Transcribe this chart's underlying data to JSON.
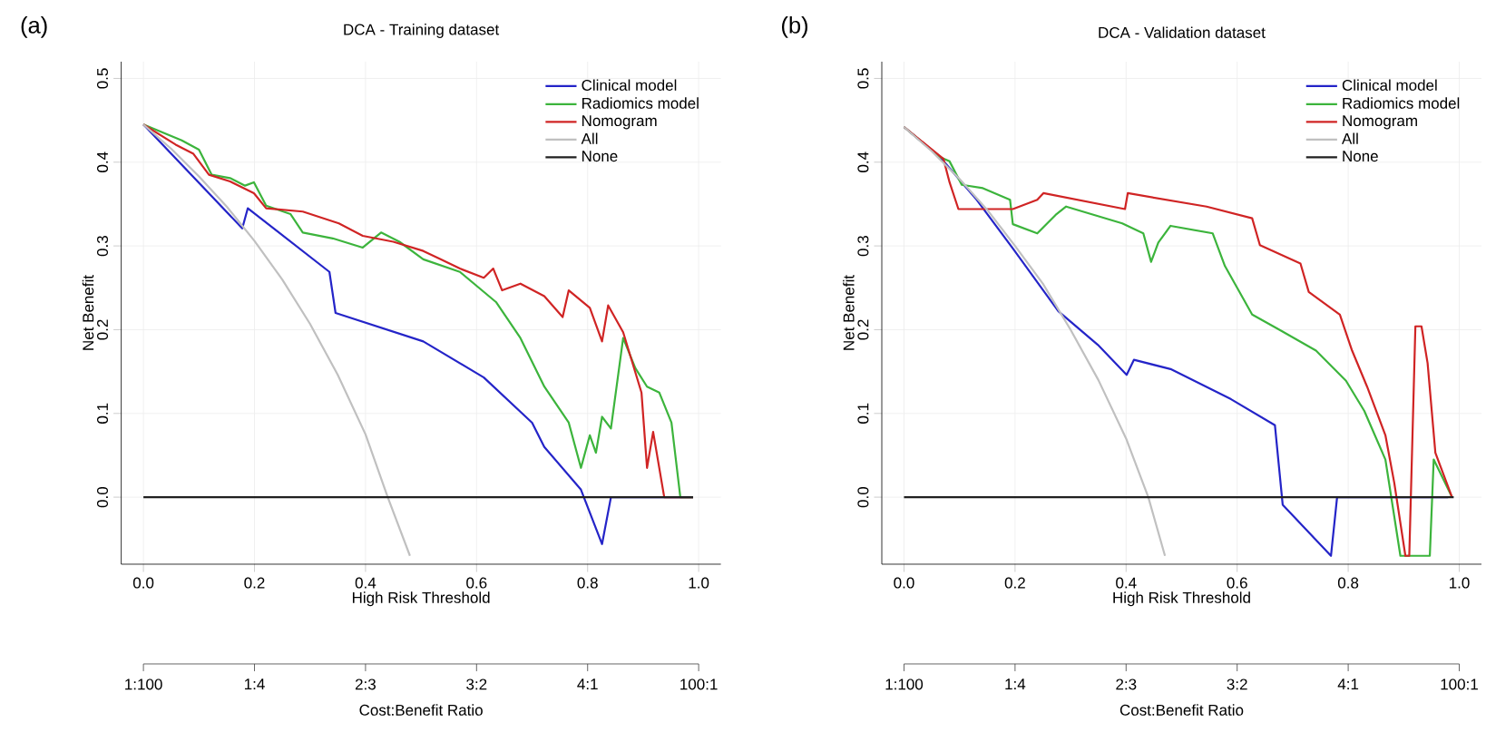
{
  "chart_data": [
    {
      "type": "line",
      "title": "DCA - Training dataset",
      "xlabel": "High Risk Threshold",
      "ylabel": "Net Benefit",
      "x2label": "Cost:Benefit Ratio",
      "annotations": [
        "(a)",
        "1:100",
        "1:4",
        "2:3",
        "3:2",
        "4:1",
        "100:1"
      ],
      "grid": true,
      "legend": "top right",
      "xlim": [
        -0.04,
        1.04
      ],
      "ylim": [
        -0.08,
        0.52
      ],
      "xticks": [
        {
          "value": 0,
          "label": "0.0"
        },
        {
          "value": 0.2,
          "label": "0.2"
        },
        {
          "value": 0.4,
          "label": "0.4"
        },
        {
          "value": 0.6,
          "label": "0.6"
        },
        {
          "value": 0.8,
          "label": "0.8"
        },
        {
          "value": 1,
          "label": "1.0"
        }
      ],
      "yticks": [
        {
          "value": 0,
          "label": "0.0"
        },
        {
          "value": 0.1,
          "label": "0.1"
        },
        {
          "value": 0.2,
          "label": "0.2"
        },
        {
          "value": 0.3,
          "label": "0.3"
        },
        {
          "value": 0.4,
          "label": "0.4"
        },
        {
          "value": 0.5,
          "label": "0.5"
        }
      ],
      "series": [
        {
          "name": "Clinical model",
          "color": "#2424c8",
          "x": [
            0,
            0.178,
            0.188,
            0.335,
            0.346,
            0.504,
            0.613,
            0.7,
            0.722,
            0.788,
            0.826,
            0.842,
            0.99
          ],
          "values": [
            0.445,
            0.321,
            0.345,
            0.269,
            0.22,
            0.186,
            0.143,
            0.089,
            0.06,
            0.009,
            -0.056,
            0,
            0
          ]
        },
        {
          "name": "Radiomics model",
          "color": "#3cb43c",
          "x": [
            0,
            0.069,
            0.1,
            0.123,
            0.156,
            0.183,
            0.199,
            0.221,
            0.265,
            0.287,
            0.341,
            0.395,
            0.428,
            0.461,
            0.504,
            0.57,
            0.635,
            0.679,
            0.722,
            0.766,
            0.788,
            0.804,
            0.815,
            0.826,
            0.842,
            0.864,
            0.886,
            0.907,
            0.929,
            0.951,
            0.967,
            0.99
          ],
          "values": [
            0.445,
            0.426,
            0.415,
            0.385,
            0.381,
            0.372,
            0.376,
            0.348,
            0.338,
            0.316,
            0.309,
            0.298,
            0.316,
            0.305,
            0.284,
            0.269,
            0.233,
            0.19,
            0.132,
            0.089,
            0.035,
            0.074,
            0.053,
            0.096,
            0.082,
            0.19,
            0.154,
            0.132,
            0.125,
            0.089,
            0,
            0
          ]
        },
        {
          "name": "Nomogram",
          "color": "#d02424",
          "x": [
            0,
            0.058,
            0.09,
            0.118,
            0.156,
            0.199,
            0.221,
            0.287,
            0.352,
            0.395,
            0.45,
            0.504,
            0.536,
            0.57,
            0.613,
            0.63,
            0.646,
            0.679,
            0.722,
            0.755,
            0.766,
            0.804,
            0.826,
            0.837,
            0.864,
            0.897,
            0.907,
            0.918,
            0.938,
            0.99
          ],
          "values": [
            0.445,
            0.421,
            0.41,
            0.385,
            0.377,
            0.363,
            0.345,
            0.341,
            0.327,
            0.312,
            0.305,
            0.294,
            0.284,
            0.273,
            0.262,
            0.273,
            0.247,
            0.255,
            0.24,
            0.215,
            0.247,
            0.226,
            0.186,
            0.229,
            0.197,
            0.125,
            0.035,
            0.078,
            0,
            0
          ]
        },
        {
          "name": "All",
          "color": "#c0c0c0",
          "x": [
            0,
            0.05,
            0.1,
            0.15,
            0.2,
            0.25,
            0.3,
            0.35,
            0.4,
            0.44,
            0.48
          ],
          "values": [
            0.445,
            0.416,
            0.383,
            0.347,
            0.306,
            0.26,
            0.207,
            0.146,
            0.075,
            0.0,
            -0.07
          ]
        },
        {
          "name": "None",
          "color": "#202020",
          "x": [
            0,
            0.99
          ],
          "values": [
            0,
            0
          ]
        }
      ]
    },
    {
      "type": "line",
      "title": "DCA - Validation dataset",
      "xlabel": "High Risk Threshold",
      "ylabel": "Net Benefit",
      "x2label": "Cost:Benefit Ratio",
      "annotations": [
        "(b)",
        "1:100",
        "1:4",
        "2:3",
        "3:2",
        "4:1",
        "100:1"
      ],
      "grid": true,
      "legend": "top right",
      "xlim": [
        -0.04,
        1.04
      ],
      "ylim": [
        -0.08,
        0.52
      ],
      "xticks": [
        {
          "value": 0,
          "label": "0.0"
        },
        {
          "value": 0.2,
          "label": "0.2"
        },
        {
          "value": 0.4,
          "label": "0.4"
        },
        {
          "value": 0.6,
          "label": "0.6"
        },
        {
          "value": 0.8,
          "label": "0.8"
        },
        {
          "value": 1,
          "label": "1.0"
        }
      ],
      "yticks": [
        {
          "value": 0,
          "label": "0.0"
        },
        {
          "value": 0.1,
          "label": "0.1"
        },
        {
          "value": 0.2,
          "label": "0.2"
        },
        {
          "value": 0.3,
          "label": "0.3"
        },
        {
          "value": 0.4,
          "label": "0.4"
        },
        {
          "value": 0.5,
          "label": "0.5"
        }
      ],
      "series": [
        {
          "name": "Clinical model",
          "color": "#2424c8",
          "x": [
            0,
            0.065,
            0.131,
            0.196,
            0.278,
            0.349,
            0.401,
            0.414,
            0.48,
            0.589,
            0.668,
            0.682,
            0.769,
            0.78,
            0.98
          ],
          "values": [
            0.442,
            0.406,
            0.355,
            0.297,
            0.222,
            0.182,
            0.146,
            0.164,
            0.153,
            0.117,
            0.086,
            -0.009,
            -0.07,
            0,
            0
          ]
        },
        {
          "name": "Radiomics model",
          "color": "#3cb43c",
          "x": [
            0,
            0.065,
            0.082,
            0.104,
            0.142,
            0.191,
            0.196,
            0.24,
            0.273,
            0.292,
            0.393,
            0.431,
            0.445,
            0.458,
            0.48,
            0.556,
            0.578,
            0.6,
            0.627,
            0.676,
            0.742,
            0.796,
            0.829,
            0.867,
            0.894,
            0.947,
            0.954,
            0.987
          ],
          "values": [
            0.442,
            0.406,
            0.401,
            0.373,
            0.369,
            0.355,
            0.326,
            0.315,
            0.337,
            0.347,
            0.327,
            0.315,
            0.281,
            0.304,
            0.324,
            0.315,
            0.276,
            0.25,
            0.218,
            0.2,
            0.175,
            0.139,
            0.103,
            0.045,
            -0.07,
            -0.07,
            0.045,
            0
          ]
        },
        {
          "name": "Nomogram",
          "color": "#d02424",
          "x": [
            0,
            0.071,
            0.082,
            0.098,
            0.153,
            0.196,
            0.24,
            0.251,
            0.398,
            0.403,
            0.545,
            0.627,
            0.641,
            0.714,
            0.729,
            0.785,
            0.807,
            0.834,
            0.867,
            0.883,
            0.903,
            0.91,
            0.921,
            0.932,
            0.943,
            0.957,
            0.987
          ],
          "values": [
            0.442,
            0.404,
            0.376,
            0.344,
            0.344,
            0.344,
            0.355,
            0.363,
            0.344,
            0.363,
            0.347,
            0.333,
            0.301,
            0.279,
            0.245,
            0.218,
            0.175,
            0.132,
            0.074,
            0.017,
            -0.07,
            -0.07,
            0.204,
            0.204,
            0.16,
            0.053,
            0
          ]
        },
        {
          "name": "All",
          "color": "#c0c0c0",
          "x": [
            0,
            0.05,
            0.1,
            0.15,
            0.2,
            0.25,
            0.3,
            0.35,
            0.4,
            0.44,
            0.47
          ],
          "values": [
            0.442,
            0.413,
            0.38,
            0.343,
            0.3,
            0.255,
            0.2,
            0.14,
            0.07,
            0.0,
            -0.07
          ]
        },
        {
          "name": "None",
          "color": "#202020",
          "x": [
            0,
            0.99
          ],
          "values": [
            0,
            0
          ]
        }
      ]
    }
  ]
}
